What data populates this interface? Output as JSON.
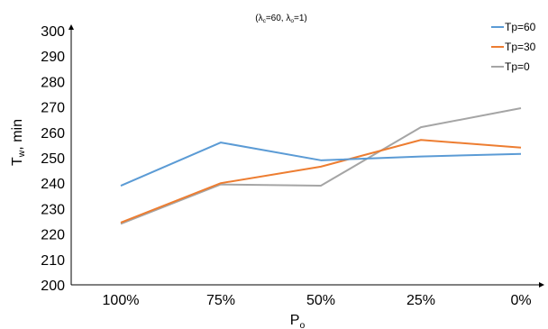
{
  "chart_data": {
    "type": "line",
    "title": {
      "text": "(λc=60, λo=1)",
      "lambda1_symbol": "λ",
      "lambda1_sub": "c",
      "lambda1_value": "=60, ",
      "lambda2_symbol": "λ",
      "lambda2_sub": "o",
      "lambda2_value": "=1)",
      "open_paren": "("
    },
    "xlabel": {
      "text": "Po",
      "main": "P",
      "sub": "o"
    },
    "ylabel": {
      "text": "Tw, min",
      "main": "T",
      "sub": "w",
      "rest": ", min"
    },
    "categories": [
      "100%",
      "75%",
      "50%",
      "25%",
      "0%"
    ],
    "ylim": [
      200,
      300
    ],
    "yticks": [
      200,
      210,
      220,
      230,
      240,
      250,
      260,
      270,
      280,
      290,
      300
    ],
    "grid": false,
    "legend_position": "top-right",
    "series": [
      {
        "name": "Tp=60",
        "color": "#5b9bd5",
        "values": [
          239,
          256,
          249,
          250.5,
          251.5
        ]
      },
      {
        "name": "Tp=30",
        "color": "#ed7d31",
        "values": [
          224.5,
          240,
          246.5,
          257,
          254
        ]
      },
      {
        "name": "Tp=0",
        "color": "#a5a5a5",
        "values": [
          224,
          239.5,
          239,
          262,
          269.5
        ]
      }
    ]
  }
}
